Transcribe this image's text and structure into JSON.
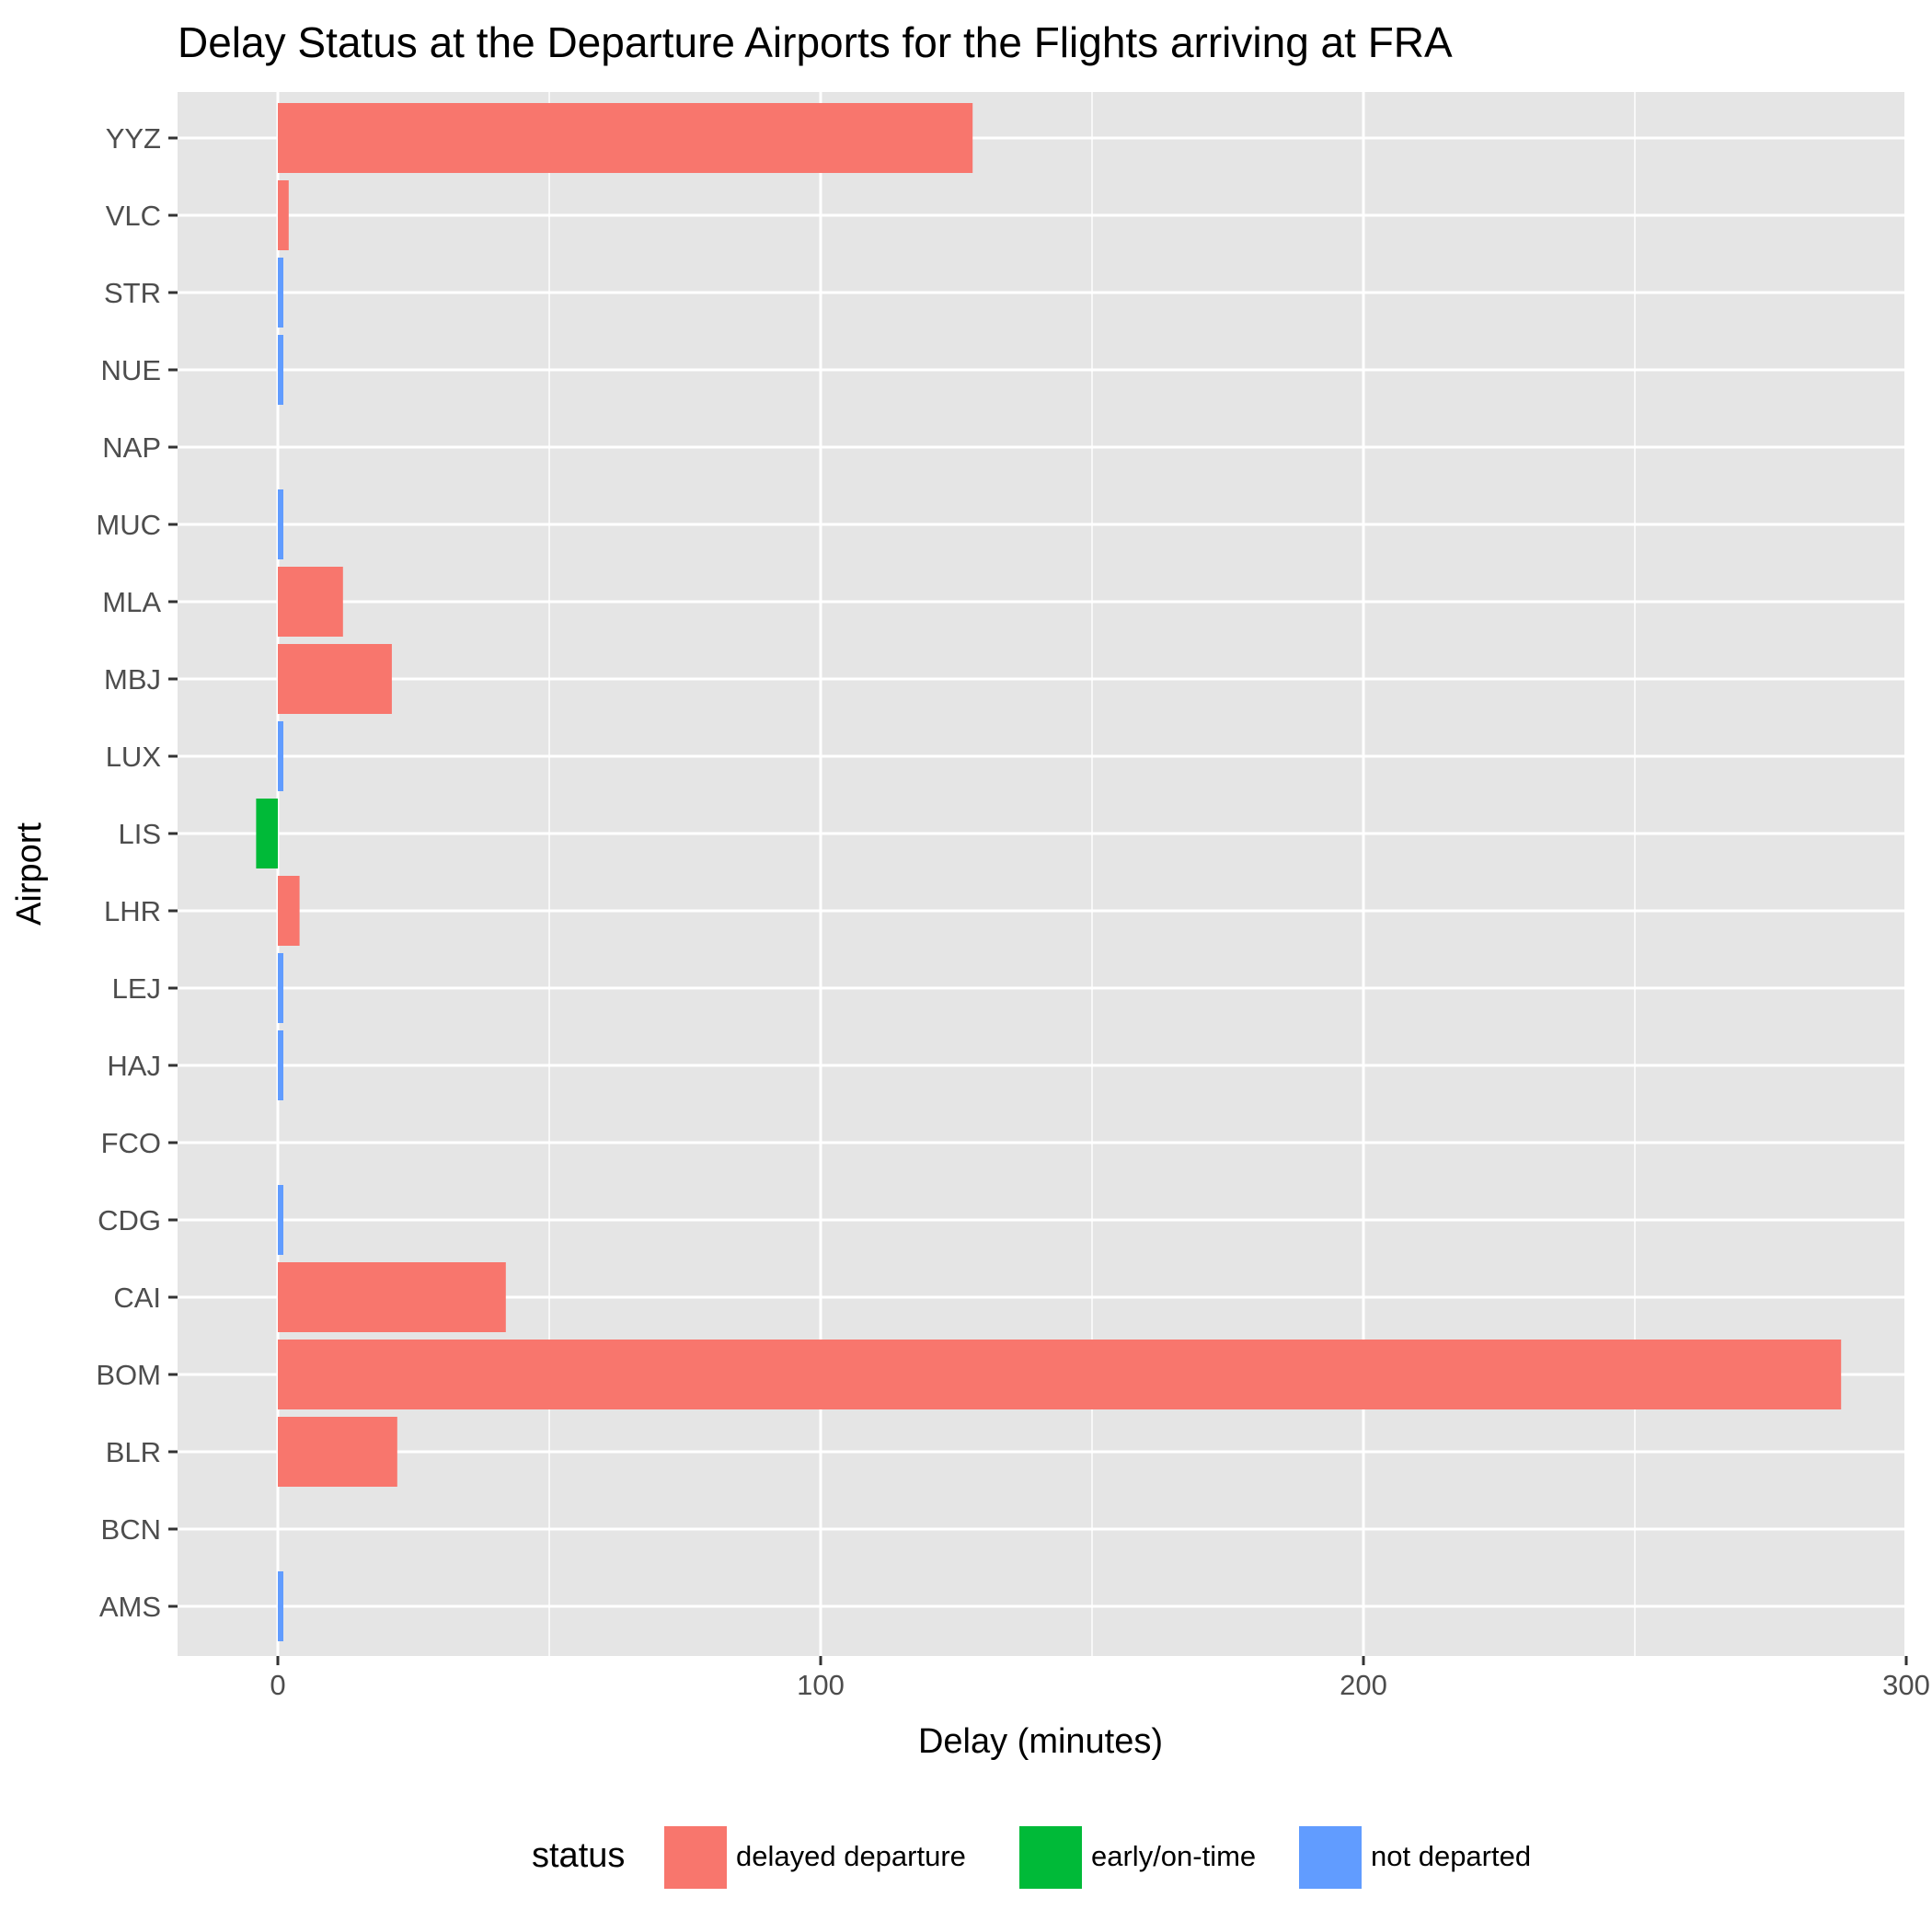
{
  "chart_data": {
    "type": "bar",
    "orientation": "horizontal",
    "title": "Delay Status at the Departure Airports for the Flights arriving at FRA",
    "xlabel": "Delay (minutes)",
    "ylabel": "Airport",
    "xlim": [
      -18,
      300
    ],
    "x_ticks": [
      0,
      100,
      200,
      300
    ],
    "x_tick_labels": [
      "0",
      "100",
      "200",
      "300"
    ],
    "grid": true,
    "legend": {
      "title": "status",
      "position": "bottom",
      "entries": [
        {
          "key": "delayed departure",
          "label": "delayed departure",
          "color": "#F8766D"
        },
        {
          "key": "early/on-time",
          "label": "early/on-time",
          "color": "#00BA38"
        },
        {
          "key": "not departed",
          "label": "not departed",
          "color": "#619CFF"
        }
      ]
    },
    "categories": [
      "YYZ",
      "VLC",
      "STR",
      "NUE",
      "NAP",
      "MUC",
      "MLA",
      "MBJ",
      "LUX",
      "LIS",
      "LHR",
      "LEJ",
      "HAJ",
      "FCO",
      "CDG",
      "CAI",
      "BOM",
      "BLR",
      "BCN",
      "AMS"
    ],
    "bars": [
      {
        "airport": "YYZ",
        "value": 128,
        "status": "delayed departure"
      },
      {
        "airport": "VLC",
        "value": 2,
        "status": "delayed departure"
      },
      {
        "airport": "STR",
        "value": 1,
        "status": "not departed"
      },
      {
        "airport": "NUE",
        "value": 1,
        "status": "not departed"
      },
      {
        "airport": "NAP",
        "value": 0,
        "status": "not departed"
      },
      {
        "airport": "MUC",
        "value": 1,
        "status": "not departed"
      },
      {
        "airport": "MLA",
        "value": 12,
        "status": "delayed departure"
      },
      {
        "airport": "MBJ",
        "value": 21,
        "status": "delayed departure"
      },
      {
        "airport": "LUX",
        "value": 1,
        "status": "not departed"
      },
      {
        "airport": "LIS",
        "value": -4,
        "status": "early/on-time"
      },
      {
        "airport": "LHR",
        "value": 4,
        "status": "delayed departure"
      },
      {
        "airport": "LEJ",
        "value": 1,
        "status": "not departed"
      },
      {
        "airport": "HAJ",
        "value": 1,
        "status": "not departed"
      },
      {
        "airport": "FCO",
        "value": 0,
        "status": "not departed"
      },
      {
        "airport": "CDG",
        "value": 1,
        "status": "not departed"
      },
      {
        "airport": "CAI",
        "value": 42,
        "status": "delayed departure"
      },
      {
        "airport": "BOM",
        "value": 288,
        "status": "delayed departure"
      },
      {
        "airport": "BLR",
        "value": 22,
        "status": "delayed departure"
      },
      {
        "airport": "BCN",
        "value": 0,
        "status": "not departed"
      },
      {
        "airport": "AMS",
        "value": 1,
        "status": "not departed"
      }
    ]
  },
  "colors": {
    "panel_background": "#E5E5E5",
    "grid_line": "#FFFFFF",
    "tick_mark": "#333333"
  }
}
